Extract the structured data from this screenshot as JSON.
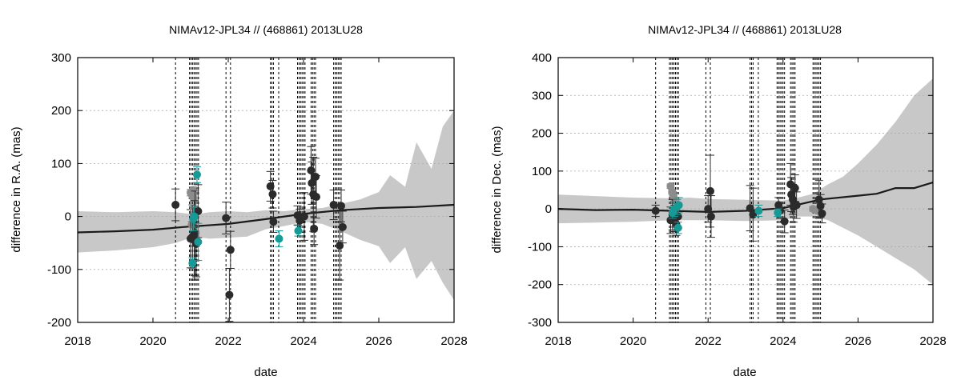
{
  "colors": {
    "band": "#c8c8c8",
    "mean_line": "#1a1a1a",
    "obs_dark": "#2b2b2b",
    "obs_gray": "#8c8c8c",
    "obs_teal": "#179a96",
    "vline": "#000000",
    "grid": "#aaaaaa"
  },
  "chart_data": [
    {
      "type": "scatter",
      "title": "NIMAv12-JPL34 // (468861) 2013LU28",
      "xlabel": "date",
      "ylabel": "difference in R.A. (mas)",
      "x_ticks": [
        "2018",
        "2020",
        "2022",
        "2024",
        "2026",
        "2028"
      ],
      "y_ticks": [
        "300",
        "200",
        "100",
        "0",
        "-100",
        "-200"
      ],
      "xlim": [
        2018,
        2028
      ],
      "ylim": [
        -200,
        300
      ],
      "grid": true,
      "mean_curve": {
        "x": [
          2018,
          2019,
          2020,
          2020.8,
          2021.2,
          2022,
          2023,
          2024,
          2025,
          2026,
          2027,
          2028
        ],
        "y": [
          -30,
          -28,
          -25,
          -20,
          -18,
          -14,
          -5,
          5,
          12,
          16,
          18,
          22
        ]
      },
      "uncertainty_band": {
        "x": [
          2018,
          2019,
          2020,
          2020.6,
          2021.1,
          2021.5,
          2022,
          2022.5,
          2023,
          2023.5,
          2024,
          2024.5,
          2025,
          2025.5,
          2026,
          2026.3,
          2026.7,
          2027,
          2027.4,
          2027.7,
          2028
        ],
        "upper": [
          10,
          8,
          10,
          8,
          4,
          8,
          10,
          8,
          12,
          10,
          14,
          16,
          24,
          32,
          46,
          78,
          56,
          140,
          90,
          170,
          200
        ],
        "lower": [
          -68,
          -64,
          -58,
          -50,
          -38,
          -42,
          -40,
          -38,
          -24,
          -18,
          -10,
          -14,
          -28,
          -44,
          -56,
          -88,
          -58,
          -118,
          -84,
          -125,
          -158
        ]
      },
      "vlines": [
        2020.6,
        2020.97,
        2021.01,
        2021.05,
        2021.09,
        2021.13,
        2021.17,
        2021.21,
        2021.94,
        2022.06,
        2023.12,
        2023.16,
        2023.2,
        2023.34,
        2023.84,
        2023.88,
        2023.92,
        2023.96,
        2024.0,
        2024.04,
        2024.2,
        2024.24,
        2024.28,
        2024.32,
        2024.8,
        2024.84,
        2024.88,
        2024.92,
        2024.96,
        2025.0
      ],
      "series": [
        {
          "color": "dark",
          "points": [
            {
              "x": 2020.6,
              "y": 22,
              "err": 30
            },
            {
              "x": 2021.0,
              "y": -42,
              "err": 55
            },
            {
              "x": 2021.05,
              "y": -38,
              "err": 60
            },
            {
              "x": 2021.1,
              "y": -45,
              "err": 75
            },
            {
              "x": 2021.12,
              "y": -32,
              "err": 80
            },
            {
              "x": 2021.15,
              "y": -52,
              "err": 62
            },
            {
              "x": 2021.2,
              "y": 10,
              "err": 50
            },
            {
              "x": 2021.94,
              "y": -3,
              "err": 30
            },
            {
              "x": 2022.03,
              "y": -148,
              "err": 50
            },
            {
              "x": 2022.06,
              "y": -63,
              "err": 35
            },
            {
              "x": 2023.12,
              "y": 57,
              "err": 28
            },
            {
              "x": 2023.18,
              "y": 42,
              "err": 26
            },
            {
              "x": 2023.2,
              "y": -10,
              "err": 20
            },
            {
              "x": 2023.84,
              "y": 2,
              "err": 18
            },
            {
              "x": 2023.9,
              "y": -8,
              "err": 22
            },
            {
              "x": 2024.02,
              "y": 0,
              "err": 45
            },
            {
              "x": 2024.2,
              "y": 87,
              "err": 45
            },
            {
              "x": 2024.22,
              "y": 63,
              "err": 40
            },
            {
              "x": 2024.26,
              "y": 42,
              "err": 70
            },
            {
              "x": 2024.28,
              "y": -23,
              "err": 30
            },
            {
              "x": 2024.32,
              "y": 75,
              "err": 35
            },
            {
              "x": 2024.34,
              "y": 37,
              "err": 40
            },
            {
              "x": 2024.8,
              "y": 22,
              "err": 28
            },
            {
              "x": 2024.96,
              "y": -55,
              "err": 65
            },
            {
              "x": 2025.0,
              "y": 20,
              "err": 30
            },
            {
              "x": 2025.04,
              "y": -20,
              "err": 30
            }
          ]
        },
        {
          "color": "gray",
          "points": [
            {
              "x": 2021.0,
              "y": 45,
              "err": 6
            },
            {
              "x": 2021.04,
              "y": 40,
              "err": 6
            },
            {
              "x": 2021.06,
              "y": 50,
              "err": 6
            },
            {
              "x": 2021.08,
              "y": 35,
              "err": 6
            },
            {
              "x": 2021.03,
              "y": -15,
              "err": 6
            }
          ]
        },
        {
          "color": "teal",
          "points": [
            {
              "x": 2021.05,
              "y": -88,
              "err": 10
            },
            {
              "x": 2021.07,
              "y": -5,
              "err": 22
            },
            {
              "x": 2021.1,
              "y": 0,
              "err": 20
            },
            {
              "x": 2021.17,
              "y": 79,
              "err": 15
            },
            {
              "x": 2021.2,
              "y": -48,
              "err": 35
            },
            {
              "x": 2023.35,
              "y": -42,
              "err": 15
            },
            {
              "x": 2023.86,
              "y": -27,
              "err": 10
            }
          ]
        }
      ]
    },
    {
      "type": "scatter",
      "title": "NIMAv12-JPL34 // (468861) 2013LU28",
      "xlabel": "date",
      "ylabel": "difference in Dec. (mas)",
      "x_ticks": [
        "2018",
        "2020",
        "2022",
        "2024",
        "2026",
        "2028"
      ],
      "y_ticks": [
        "400",
        "300",
        "200",
        "100",
        "0",
        "-100",
        "-200",
        "-300"
      ],
      "xlim": [
        2018,
        2028
      ],
      "ylim": [
        -300,
        400
      ],
      "grid": true,
      "mean_curve": {
        "x": [
          2018,
          2019,
          2020,
          2021,
          2022,
          2023,
          2024,
          2025,
          2026,
          2026.5,
          2027,
          2027.5,
          2028
        ],
        "y": [
          0,
          -3,
          -2,
          -5,
          -8,
          -5,
          2,
          25,
          35,
          40,
          55,
          55,
          70
        ]
      },
      "uncertainty_band": {
        "x": [
          2018,
          2019,
          2020,
          2021,
          2021.5,
          2022,
          2023,
          2024,
          2024.4,
          2024.8,
          2025.2,
          2025.6,
          2026,
          2026.5,
          2027,
          2027.5,
          2028
        ],
        "upper": [
          38,
          34,
          30,
          28,
          30,
          26,
          24,
          22,
          30,
          40,
          65,
          85,
          120,
          170,
          230,
          300,
          345
        ],
        "lower": [
          -38,
          -36,
          -34,
          -30,
          -30,
          -30,
          -32,
          -30,
          -20,
          -20,
          -30,
          -50,
          -70,
          -100,
          -130,
          -160,
          -200
        ]
      },
      "vlines": [
        2020.6,
        2020.97,
        2021.01,
        2021.05,
        2021.09,
        2021.13,
        2021.17,
        2021.21,
        2021.94,
        2022.06,
        2023.12,
        2023.16,
        2023.2,
        2023.34,
        2023.84,
        2023.88,
        2023.92,
        2023.96,
        2024.0,
        2024.04,
        2024.2,
        2024.24,
        2024.28,
        2024.32,
        2024.8,
        2024.84,
        2024.88,
        2024.92,
        2024.96,
        2025.0
      ],
      "series": [
        {
          "color": "dark",
          "points": [
            {
              "x": 2020.6,
              "y": -5,
              "err": 15
            },
            {
              "x": 2021.0,
              "y": -30,
              "err": 35
            },
            {
              "x": 2021.05,
              "y": -15,
              "err": 40
            },
            {
              "x": 2021.1,
              "y": -25,
              "err": 35
            },
            {
              "x": 2021.15,
              "y": -40,
              "err": 30
            },
            {
              "x": 2021.2,
              "y": -20,
              "err": 30
            },
            {
              "x": 2022.0,
              "y": 0,
              "err": 35
            },
            {
              "x": 2022.06,
              "y": 47,
              "err": 95
            },
            {
              "x": 2022.08,
              "y": -20,
              "err": 55
            },
            {
              "x": 2023.12,
              "y": 2,
              "err": 60
            },
            {
              "x": 2023.2,
              "y": -15,
              "err": 70
            },
            {
              "x": 2023.88,
              "y": 10,
              "err": 20
            },
            {
              "x": 2023.92,
              "y": -5,
              "err": 20
            },
            {
              "x": 2024.04,
              "y": -33,
              "err": 30
            },
            {
              "x": 2024.2,
              "y": 65,
              "err": 55
            },
            {
              "x": 2024.22,
              "y": 38,
              "err": 45
            },
            {
              "x": 2024.26,
              "y": 25,
              "err": 40
            },
            {
              "x": 2024.28,
              "y": 5,
              "err": 40
            },
            {
              "x": 2024.32,
              "y": 55,
              "err": 35
            },
            {
              "x": 2024.36,
              "y": 10,
              "err": 35
            },
            {
              "x": 2024.96,
              "y": 25,
              "err": 50
            },
            {
              "x": 2025.0,
              "y": 8,
              "err": 30
            },
            {
              "x": 2025.04,
              "y": -12,
              "err": 25
            }
          ]
        },
        {
          "color": "gray",
          "points": [
            {
              "x": 2021.0,
              "y": 60,
              "err": 6
            },
            {
              "x": 2021.04,
              "y": 45,
              "err": 6
            },
            {
              "x": 2021.06,
              "y": 40,
              "err": 6
            },
            {
              "x": 2021.08,
              "y": 30,
              "err": 6
            },
            {
              "x": 2024.8,
              "y": 0,
              "err": 6
            },
            {
              "x": 2024.92,
              "y": -5,
              "err": 6
            }
          ]
        },
        {
          "color": "teal",
          "points": [
            {
              "x": 2021.05,
              "y": -10,
              "err": 15
            },
            {
              "x": 2021.1,
              "y": 0,
              "err": 20
            },
            {
              "x": 2021.17,
              "y": 5,
              "err": 20
            },
            {
              "x": 2021.2,
              "y": -50,
              "err": 15
            },
            {
              "x": 2021.22,
              "y": 10,
              "err": 20
            },
            {
              "x": 2023.35,
              "y": -5,
              "err": 15
            },
            {
              "x": 2023.86,
              "y": -10,
              "err": 10
            }
          ]
        }
      ]
    }
  ]
}
